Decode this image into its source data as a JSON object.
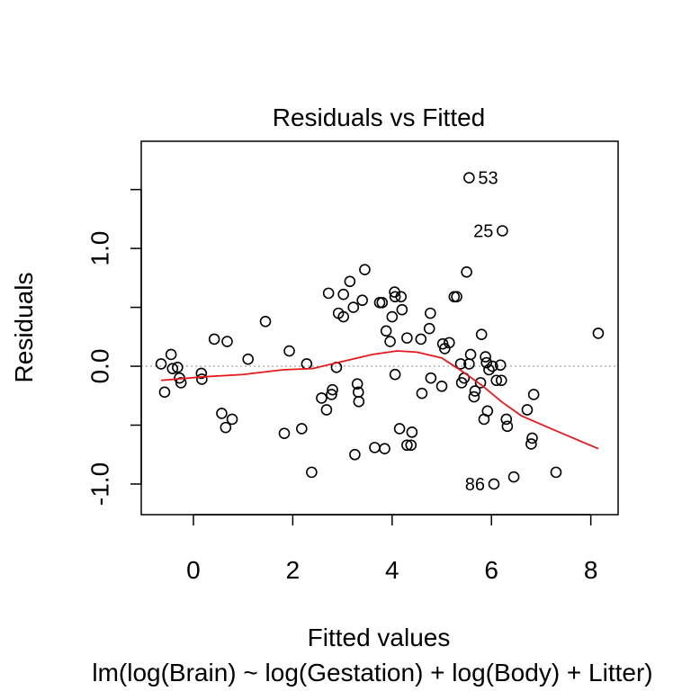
{
  "chart_data": {
    "type": "scatter",
    "title": "Residuals vs Fitted",
    "xlabel": "Fitted values",
    "ylabel": "Residuals",
    "subtitle": "lm(log(Brain) ~ log(Gestation) + log(Body) + Litter)",
    "xlim": [
      -1.05,
      8.55
    ],
    "ylim": [
      -1.26,
      1.91
    ],
    "x_ticks": [
      0,
      2,
      4,
      6,
      8
    ],
    "x_tick_labels": [
      "0",
      "2",
      "4",
      "6",
      "8"
    ],
    "y_ticks": [
      -1.0,
      -0.5,
      0.0,
      0.5,
      1.0,
      1.5
    ],
    "y_tick_labels": [
      "-1.0",
      "",
      "0.0",
      "",
      "1.0",
      ""
    ],
    "reference_line": {
      "y": 0,
      "style": "dotted",
      "color": "#b3b3b3"
    },
    "points": [
      {
        "x": -0.65,
        "y": 0.02
      },
      {
        "x": -0.58,
        "y": -0.22
      },
      {
        "x": -0.45,
        "y": 0.1
      },
      {
        "x": -0.42,
        "y": -0.02
      },
      {
        "x": -0.32,
        "y": -0.01
      },
      {
        "x": -0.28,
        "y": -0.1
      },
      {
        "x": -0.25,
        "y": -0.14
      },
      {
        "x": 0.16,
        "y": -0.06
      },
      {
        "x": 0.17,
        "y": -0.11
      },
      {
        "x": 0.42,
        "y": 0.23
      },
      {
        "x": 0.57,
        "y": -0.4
      },
      {
        "x": 0.65,
        "y": -0.52
      },
      {
        "x": 0.68,
        "y": 0.21
      },
      {
        "x": 0.78,
        "y": -0.45
      },
      {
        "x": 1.1,
        "y": 0.06
      },
      {
        "x": 1.45,
        "y": 0.38
      },
      {
        "x": 1.83,
        "y": -0.57
      },
      {
        "x": 1.93,
        "y": 0.13
      },
      {
        "x": 2.18,
        "y": -0.53
      },
      {
        "x": 2.28,
        "y": 0.02
      },
      {
        "x": 2.38,
        "y": -0.9
      },
      {
        "x": 2.58,
        "y": -0.27
      },
      {
        "x": 2.68,
        "y": -0.37
      },
      {
        "x": 2.72,
        "y": 0.62
      },
      {
        "x": 2.78,
        "y": -0.24
      },
      {
        "x": 2.8,
        "y": -0.2
      },
      {
        "x": 2.88,
        "y": -0.01
      },
      {
        "x": 2.92,
        "y": 0.45
      },
      {
        "x": 3.02,
        "y": 0.42
      },
      {
        "x": 3.02,
        "y": 0.61
      },
      {
        "x": 3.15,
        "y": 0.72
      },
      {
        "x": 3.22,
        "y": 0.5
      },
      {
        "x": 3.25,
        "y": -0.75
      },
      {
        "x": 3.3,
        "y": -0.15
      },
      {
        "x": 3.32,
        "y": -0.22
      },
      {
        "x": 3.33,
        "y": -0.3
      },
      {
        "x": 3.4,
        "y": 0.56
      },
      {
        "x": 3.45,
        "y": 0.82
      },
      {
        "x": 3.65,
        "y": -0.69
      },
      {
        "x": 3.75,
        "y": 0.54
      },
      {
        "x": 3.8,
        "y": 0.54
      },
      {
        "x": 3.85,
        "y": -0.7
      },
      {
        "x": 3.88,
        "y": 0.3
      },
      {
        "x": 3.96,
        "y": 0.21
      },
      {
        "x": 4.0,
        "y": 0.42
      },
      {
        "x": 4.05,
        "y": 0.63
      },
      {
        "x": 4.06,
        "y": -0.07
      },
      {
        "x": 4.06,
        "y": 0.59
      },
      {
        "x": 4.15,
        "y": -0.53
      },
      {
        "x": 4.18,
        "y": 0.59
      },
      {
        "x": 4.2,
        "y": 0.48
      },
      {
        "x": 4.3,
        "y": 0.24
      },
      {
        "x": 4.3,
        "y": -0.67
      },
      {
        "x": 4.38,
        "y": -0.67
      },
      {
        "x": 4.4,
        "y": -0.56
      },
      {
        "x": 4.58,
        "y": 0.23
      },
      {
        "x": 4.6,
        "y": -0.23
      },
      {
        "x": 4.75,
        "y": 0.32
      },
      {
        "x": 4.77,
        "y": 0.45
      },
      {
        "x": 4.78,
        "y": -0.1
      },
      {
        "x": 5.0,
        "y": -0.17
      },
      {
        "x": 5.02,
        "y": 0.19
      },
      {
        "x": 5.06,
        "y": 0.15
      },
      {
        "x": 5.15,
        "y": 0.2
      },
      {
        "x": 5.25,
        "y": 0.59
      },
      {
        "x": 5.3,
        "y": 0.59
      },
      {
        "x": 5.38,
        "y": 0.02
      },
      {
        "x": 5.4,
        "y": -0.14
      },
      {
        "x": 5.45,
        "y": -0.1
      },
      {
        "x": 5.5,
        "y": 0.8
      },
      {
        "x": 5.55,
        "y": 0.02
      },
      {
        "x": 5.58,
        "y": 0.1
      },
      {
        "x": 5.65,
        "y": -0.26
      },
      {
        "x": 5.67,
        "y": -0.21
      },
      {
        "x": 5.78,
        "y": -0.14
      },
      {
        "x": 5.8,
        "y": 0.27
      },
      {
        "x": 5.85,
        "y": -0.45
      },
      {
        "x": 5.88,
        "y": 0.08
      },
      {
        "x": 5.9,
        "y": 0.03
      },
      {
        "x": 5.92,
        "y": -0.38
      },
      {
        "x": 5.95,
        "y": -0.03
      },
      {
        "x": 6.02,
        "y": 0.0
      },
      {
        "x": 6.1,
        "y": -0.12
      },
      {
        "x": 6.18,
        "y": 0.01
      },
      {
        "x": 6.2,
        "y": -0.12
      },
      {
        "x": 6.3,
        "y": -0.45
      },
      {
        "x": 6.32,
        "y": -0.51
      },
      {
        "x": 6.45,
        "y": -0.94
      },
      {
        "x": 6.72,
        "y": -0.37
      },
      {
        "x": 6.8,
        "y": -0.66
      },
      {
        "x": 6.82,
        "y": -0.61
      },
      {
        "x": 6.85,
        "y": -0.24
      },
      {
        "x": 7.3,
        "y": -0.9
      },
      {
        "x": 8.15,
        "y": 0.28
      },
      {
        "x": 5.55,
        "y": 1.6,
        "label": "53"
      },
      {
        "x": 6.22,
        "y": 1.15,
        "label": "25"
      },
      {
        "x": 6.05,
        "y": -1.0,
        "label": "86"
      }
    ],
    "smooth_line": {
      "color": "#e41a1c",
      "x": [
        -0.65,
        0.2,
        1.0,
        1.8,
        2.4,
        3.0,
        3.6,
        4.1,
        4.5,
        5.0,
        5.4,
        5.8,
        6.2,
        6.6,
        7.2,
        8.15
      ],
      "y": [
        -0.12,
        -0.09,
        -0.07,
        -0.03,
        -0.02,
        0.04,
        0.1,
        0.13,
        0.12,
        0.07,
        -0.04,
        -0.16,
        -0.3,
        -0.42,
        -0.53,
        -0.7
      ]
    },
    "grid": false,
    "marker": "open-circle"
  }
}
